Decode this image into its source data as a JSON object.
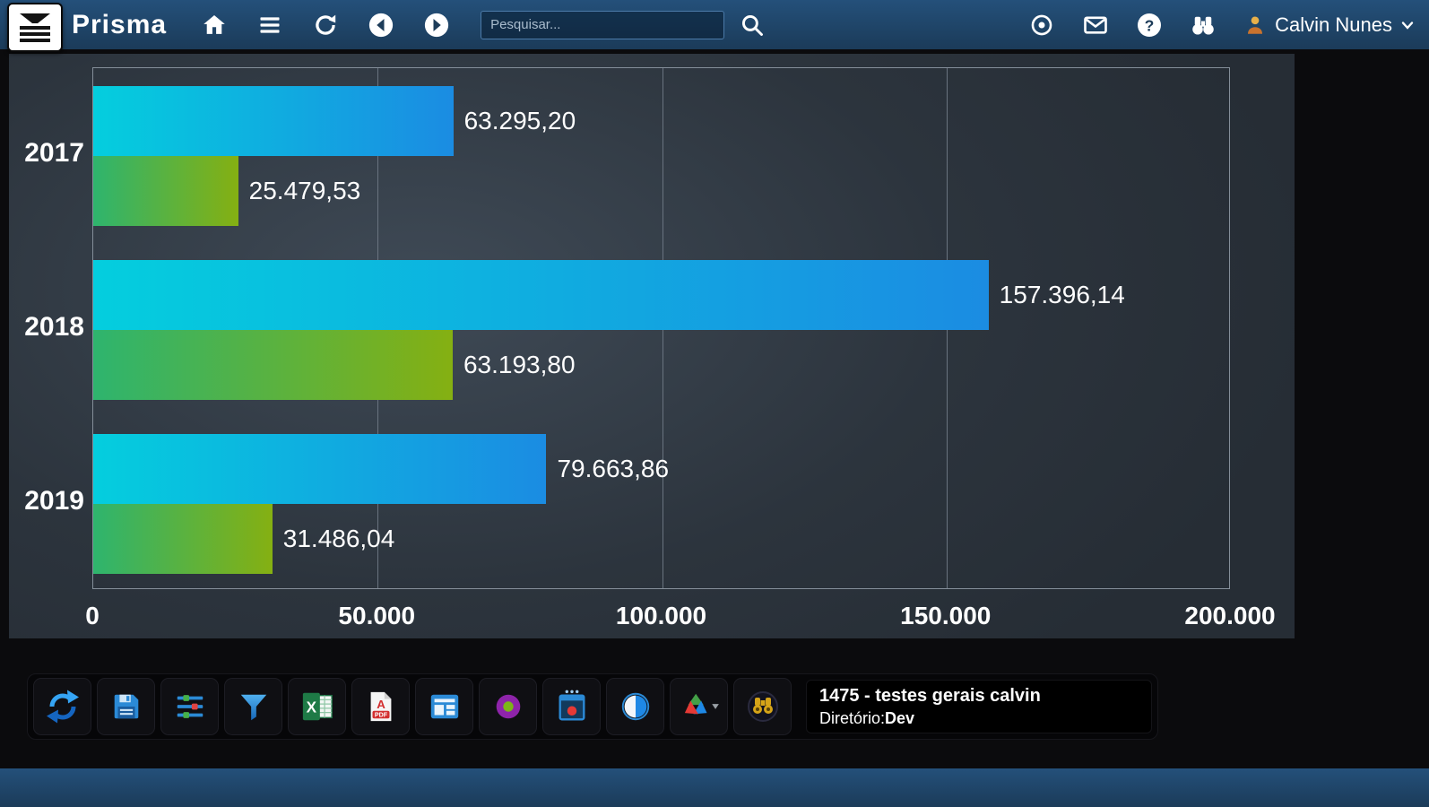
{
  "navbar": {
    "brand": "Prisma",
    "search": {
      "placeholder": "Pesquisar..."
    },
    "user": {
      "name": "Calvin Nunes"
    },
    "left_icons": [
      "menu-icon",
      "home-icon",
      "list-icon",
      "refresh-icon",
      "back-circle-icon",
      "forward-circle-icon",
      "search-icon"
    ],
    "right_icons": [
      "target-icon",
      "mail-icon",
      "help-icon",
      "binoculars-icon",
      "avatar-icon",
      "caret-down-icon"
    ]
  },
  "chart_data": {
    "type": "bar",
    "orientation": "horizontal",
    "title": "",
    "categories": [
      "2017",
      "2018",
      "2019"
    ],
    "series": [
      {
        "name": "series-blue",
        "colors": [
          "#04cede",
          "#1b8ce2"
        ],
        "values": [
          63295.2,
          157396.14,
          79663.86
        ],
        "labels": [
          "63.295,20",
          "157.396,14",
          "79.663,86"
        ]
      },
      {
        "name": "series-green",
        "colors": [
          "#2eb46e",
          "#85b012"
        ],
        "values": [
          25479.53,
          63193.8,
          31486.04
        ],
        "labels": [
          "25.479,53",
          "63.193,80",
          "31.486,04"
        ]
      }
    ],
    "xlim": [
      0,
      200000
    ],
    "x_ticks": [
      {
        "value": 0,
        "label": "0"
      },
      {
        "value": 50000,
        "label": "50.000"
      },
      {
        "value": 100000,
        "label": "100.000"
      },
      {
        "value": 150000,
        "label": "150.000"
      },
      {
        "value": 200000,
        "label": "200.000"
      }
    ],
    "grid": true,
    "legend": "none"
  },
  "toolbar": {
    "buttons": [
      {
        "name": "refresh-report-button",
        "icon": "sync-icon"
      },
      {
        "name": "save-button",
        "icon": "save-icon"
      },
      {
        "name": "display-settings-button",
        "icon": "sliders-icon"
      },
      {
        "name": "filter-button",
        "icon": "funnel-icon"
      },
      {
        "name": "export-excel-button",
        "icon": "excel-icon"
      },
      {
        "name": "export-pdf-button",
        "icon": "pdf-icon"
      },
      {
        "name": "layout-button",
        "icon": "panels-icon"
      },
      {
        "name": "chart-style-button",
        "icon": "donut-icon"
      },
      {
        "name": "popup-window-button",
        "icon": "window-record-icon"
      },
      {
        "name": "toggle-view-button",
        "icon": "toggle-circle-icon"
      },
      {
        "name": "integrations-button",
        "icon": "trefoil-icon"
      },
      {
        "name": "lookup-button",
        "icon": "binoculars-badge-icon"
      }
    ],
    "info": {
      "title": "1475 - testes gerais calvin",
      "directory_label": "Diretório:",
      "directory_value": "Dev"
    }
  },
  "colors": {
    "navbar_bg": "#1d3c59",
    "bar_blue_start": "#04cede",
    "bar_blue_end": "#1b8ce2",
    "bar_green_start": "#2eb46e",
    "bar_green_end": "#85b012"
  }
}
